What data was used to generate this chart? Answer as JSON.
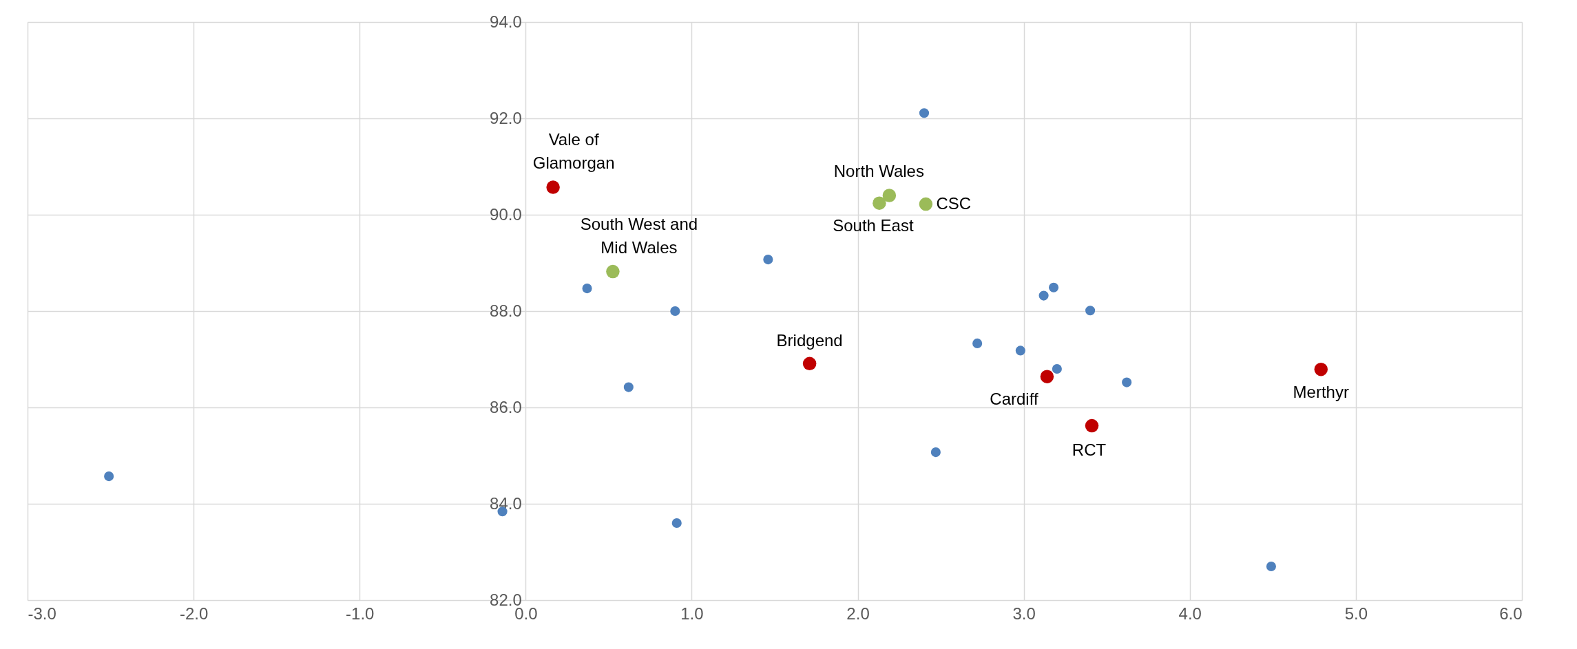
{
  "chart_data": {
    "type": "scatter",
    "xlim": [
      -3.0,
      6.0
    ],
    "ylim": [
      82.0,
      94.0
    ],
    "xticks": [
      {
        "value": -3,
        "label": "-3.0"
      },
      {
        "value": -2,
        "label": "-2.0"
      },
      {
        "value": -1,
        "label": "-1.0"
      },
      {
        "value": 0,
        "label": "0.0"
      },
      {
        "value": 1,
        "label": "1.0"
      },
      {
        "value": 2,
        "label": "2.0"
      },
      {
        "value": 3,
        "label": "3.0"
      },
      {
        "value": 4,
        "label": "4.0"
      },
      {
        "value": 5,
        "label": "5.0"
      },
      {
        "value": 6,
        "label": "6.0"
      }
    ],
    "yticks": [
      {
        "value": 82,
        "label": "82.0"
      },
      {
        "value": 84,
        "label": "84.0"
      },
      {
        "value": 86,
        "label": "86.0"
      },
      {
        "value": 88,
        "label": "88.0"
      },
      {
        "value": 90,
        "label": "90.0"
      },
      {
        "value": 92,
        "label": "92.0"
      },
      {
        "value": 94,
        "label": "94.0"
      }
    ],
    "grid": true,
    "marker": "circle",
    "series": [
      {
        "color": "#4f81bd",
        "x": [
          -2.51,
          -0.14,
          0.37,
          0.62,
          0.9,
          0.91,
          1.46,
          2.4,
          2.47,
          2.72,
          2.98,
          3.12,
          3.18,
          3.2,
          3.4,
          3.62,
          4.49
        ],
        "values": [
          84.57,
          83.84,
          88.47,
          86.42,
          88.0,
          83.6,
          89.07,
          92.11,
          85.07,
          87.33,
          87.18,
          88.32,
          88.49,
          86.8,
          88.01,
          86.52,
          82.7
        ]
      },
      {
        "color": "#c00000",
        "x": [
          0.165,
          1.71,
          3.14,
          3.41,
          4.79
        ],
        "values": [
          90.57,
          86.91,
          86.64,
          85.62,
          86.79
        ]
      },
      {
        "color": "#9bbb59",
        "x": [
          0.525,
          2.19,
          2.13,
          2.41
        ],
        "values": [
          88.82,
          90.4,
          90.24,
          90.22
        ]
      }
    ],
    "annotations": [
      {
        "text": "Vale of\nGlamorgan",
        "x": 0.165,
        "y": 90.57
      },
      {
        "text": "Bridgend",
        "x": 1.71,
        "y": 86.91
      },
      {
        "text": "Cardiff",
        "x": 3.14,
        "y": 86.64
      },
      {
        "text": "RCT",
        "x": 3.41,
        "y": 85.62
      },
      {
        "text": "Merthyr",
        "x": 4.79,
        "y": 86.79
      },
      {
        "text": "South West and\nMid Wales",
        "x": 0.525,
        "y": 88.82
      },
      {
        "text": "North Wales",
        "x": 2.19,
        "y": 90.4
      },
      {
        "text": "South East",
        "x": 2.13,
        "y": 90.24
      },
      {
        "text": "CSC",
        "x": 2.41,
        "y": 90.22
      }
    ]
  }
}
